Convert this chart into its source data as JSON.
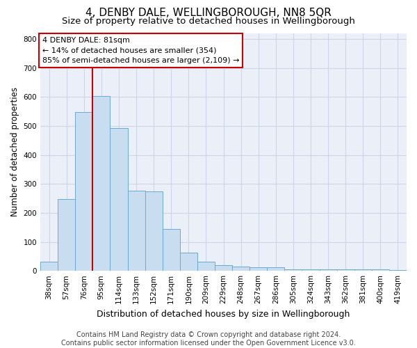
{
  "title": "4, DENBY DALE, WELLINGBOROUGH, NN8 5QR",
  "subtitle": "Size of property relative to detached houses in Wellingborough",
  "xlabel": "Distribution of detached houses by size in Wellingborough",
  "ylabel": "Number of detached properties",
  "footer_line1": "Contains HM Land Registry data © Crown copyright and database right 2024.",
  "footer_line2": "Contains public sector information licensed under the Open Government Licence v3.0.",
  "categories": [
    "38sqm",
    "57sqm",
    "76sqm",
    "95sqm",
    "114sqm",
    "133sqm",
    "152sqm",
    "171sqm",
    "190sqm",
    "209sqm",
    "229sqm",
    "248sqm",
    "267sqm",
    "286sqm",
    "305sqm",
    "324sqm",
    "343sqm",
    "362sqm",
    "381sqm",
    "400sqm",
    "419sqm"
  ],
  "values": [
    32,
    248,
    548,
    604,
    492,
    277,
    275,
    144,
    62,
    32,
    20,
    15,
    13,
    13,
    6,
    5,
    6,
    5,
    6,
    5,
    4
  ],
  "bar_color": "#c9ddf0",
  "bar_edge_color": "#6aaad4",
  "annotation_text": "4 DENBY DALE: 81sqm\n← 14% of detached houses are smaller (354)\n85% of semi-detached houses are larger (2,109) →",
  "vline_x": 2.5,
  "vline_color": "#cc0000",
  "ylim": [
    0,
    820
  ],
  "yticks": [
    0,
    100,
    200,
    300,
    400,
    500,
    600,
    700,
    800
  ],
  "grid_color": "#cdd6e8",
  "background_color": "#eaeff8",
  "title_fontsize": 11,
  "subtitle_fontsize": 9.5,
  "xlabel_fontsize": 9,
  "ylabel_fontsize": 8.5,
  "annotation_fontsize": 8,
  "footer_fontsize": 7,
  "tick_fontsize": 7.5
}
